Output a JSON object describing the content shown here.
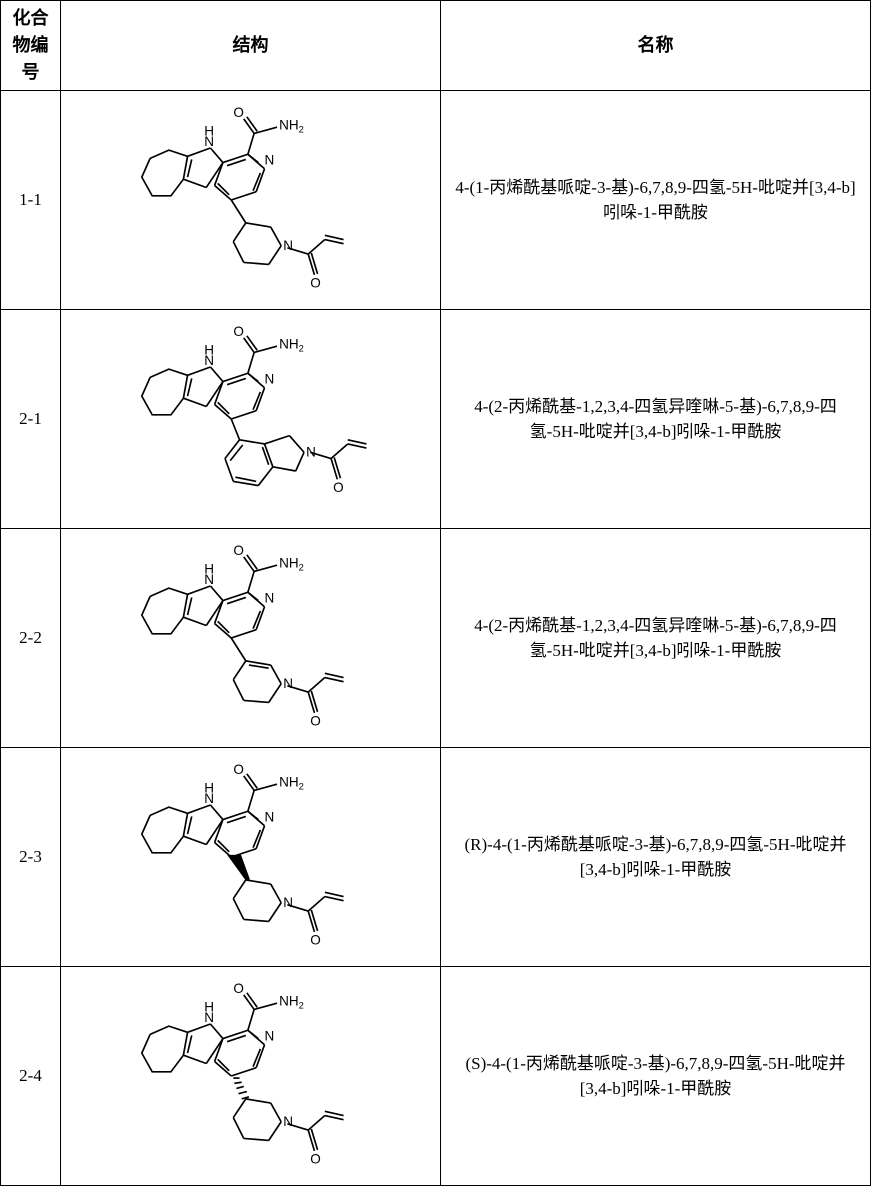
{
  "headers": {
    "id": "化合物编号",
    "struct": "结构",
    "name": "名称"
  },
  "rows": [
    {
      "id": "1-1",
      "name": "4-(1-丙烯酰基哌啶-3-基)-6,7,8,9-四氢-5H-吡啶并[3,4-b]吲哚-1-甲酰胺",
      "struct_labels": {
        "o": "O",
        "nh2": "NH",
        "nh2_sub": "2",
        "nh": "N",
        "nh_h": "H",
        "n1": "N",
        "n2": "N",
        "o2": "O"
      },
      "struct_colors": {
        "stroke": "#000000",
        "text": "#000000"
      }
    },
    {
      "id": "2-1",
      "name": "4-(2-丙烯酰基-1,2,3,4-四氢异喹啉-5-基)-6,7,8,9-四氢-5H-吡啶并[3,4-b]吲哚-1-甲酰胺",
      "struct_labels": {
        "o": "O",
        "nh2": "NH",
        "nh2_sub": "2",
        "nh": "N",
        "nh_h": "H",
        "n1": "N",
        "n2": "N",
        "o2": "O"
      },
      "struct_colors": {
        "stroke": "#000000",
        "text": "#000000"
      }
    },
    {
      "id": "2-2",
      "name": "4-(2-丙烯酰基-1,2,3,4-四氢异喹啉-5-基)-6,7,8,9-四氢-5H-吡啶并[3,4-b]吲哚-1-甲酰胺",
      "struct_labels": {
        "o": "O",
        "nh2": "NH",
        "nh2_sub": "2",
        "nh": "N",
        "nh_h": "H",
        "n1": "N",
        "n2": "N",
        "o2": "O"
      },
      "struct_colors": {
        "stroke": "#000000",
        "text": "#000000"
      }
    },
    {
      "id": "2-3",
      "name": "(R)-4-(1-丙烯酰基哌啶-3-基)-6,7,8,9-四氢-5H-吡啶并[3,4-b]吲哚-1-甲酰胺",
      "struct_labels": {
        "o": "O",
        "nh2": "NH",
        "nh2_sub": "2",
        "nh": "N",
        "nh_h": "H",
        "n1": "N",
        "n2": "N",
        "o2": "O"
      },
      "struct_colors": {
        "stroke": "#000000",
        "text": "#000000"
      }
    },
    {
      "id": "2-4",
      "name": "(S)-4-(1-丙烯酰基哌啶-3-基)-6,7,8,9-四氢-5H-吡啶并[3,4-b]吲哚-1-甲酰胺",
      "struct_labels": {
        "o": "O",
        "nh2": "NH",
        "nh2_sub": "2",
        "nh": "N",
        "nh_h": "H",
        "n1": "N",
        "n2": "N",
        "o2": "O"
      },
      "struct_colors": {
        "stroke": "#000000",
        "text": "#000000"
      }
    }
  ]
}
